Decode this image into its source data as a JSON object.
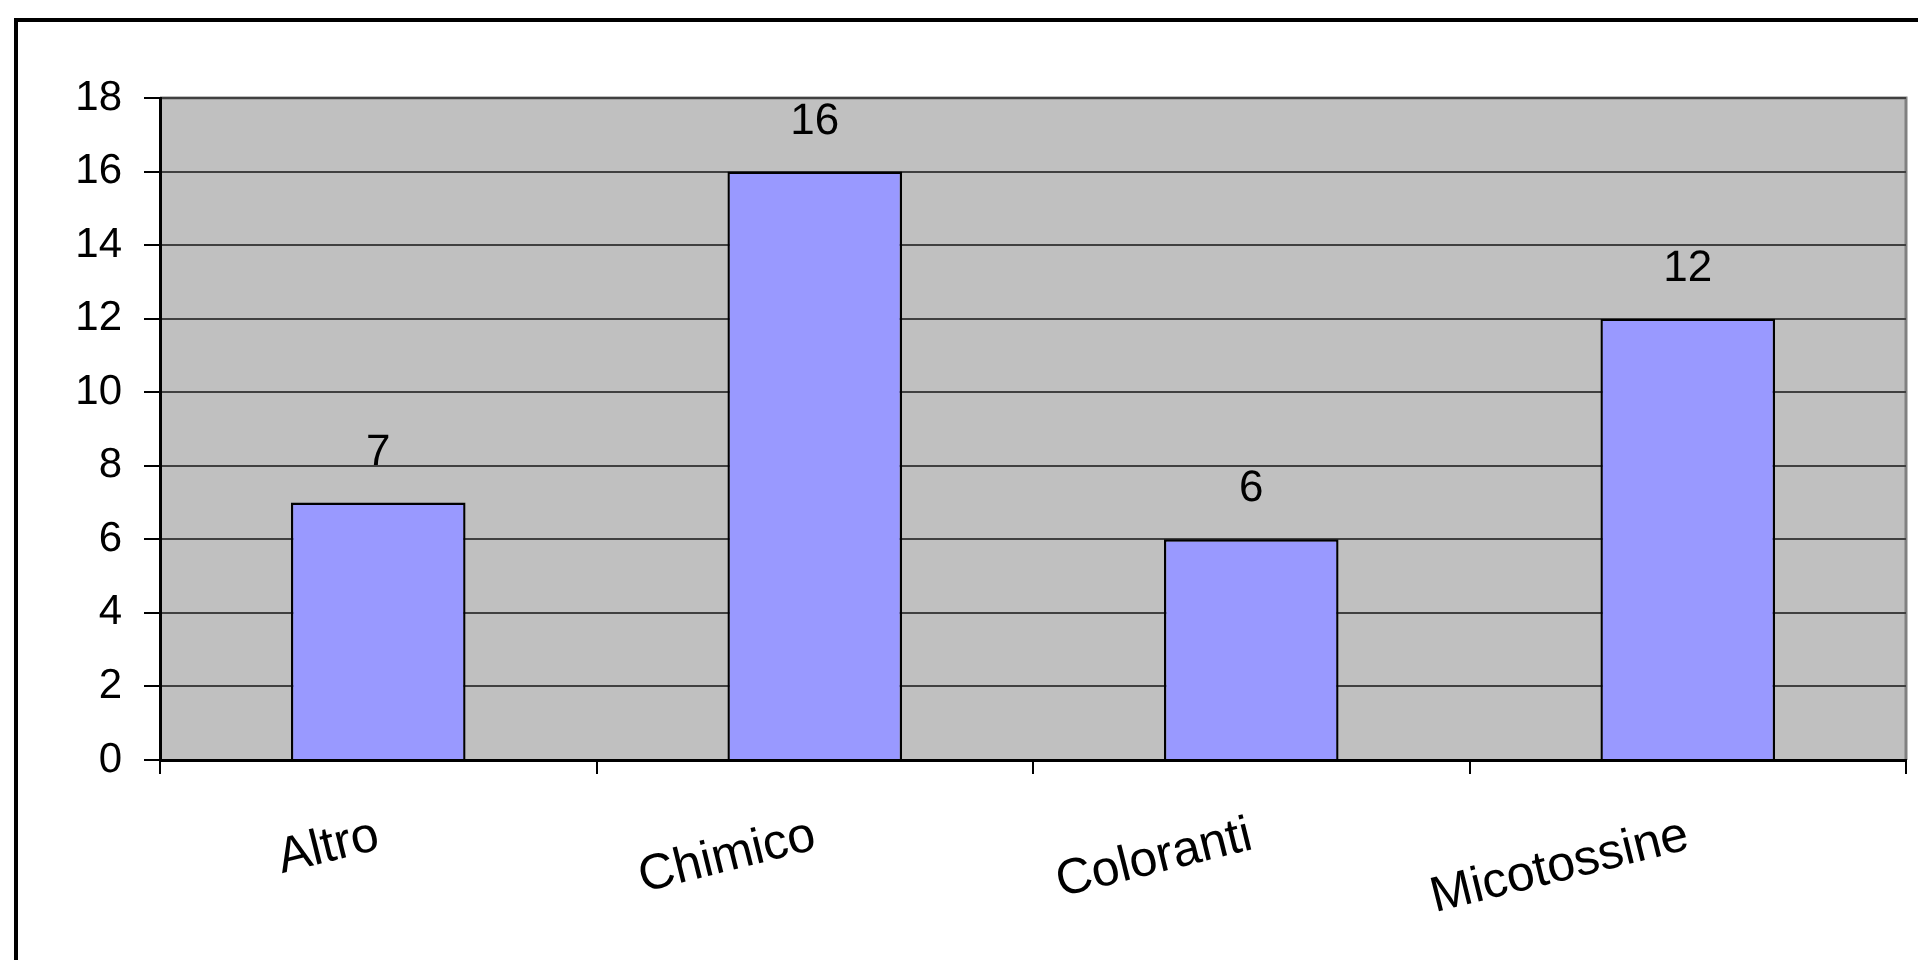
{
  "chart_data": {
    "type": "bar",
    "categories": [
      "Altro",
      "Chimico",
      "Coloranti",
      "Micotossine"
    ],
    "values": [
      7,
      16,
      6,
      12
    ],
    "color": "#9999ff",
    "ylim": [
      0,
      18
    ],
    "yticks": [
      0,
      2,
      4,
      6,
      8,
      10,
      12,
      14,
      16,
      18
    ],
    "grid": "y",
    "data_labels": true
  }
}
